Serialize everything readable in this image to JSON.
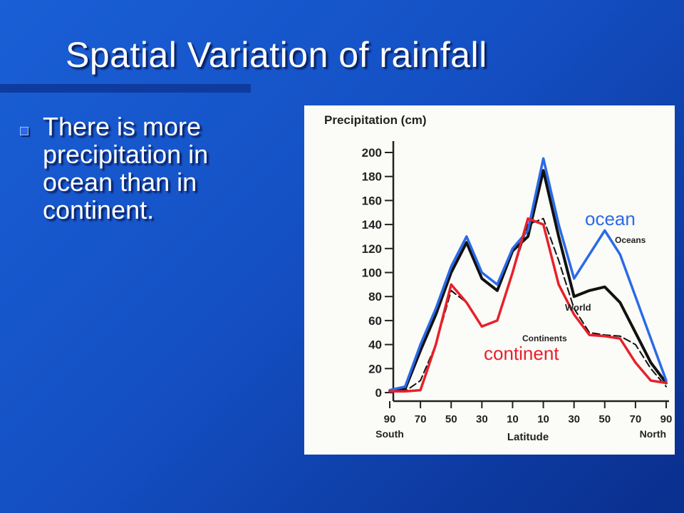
{
  "slide": {
    "title": "Spatial Variation of rainfall",
    "bullets": [
      "There is more precipitation in ocean than in continent."
    ],
    "colors": {
      "background": "#1a5fd6",
      "ocean_annotation": "#2a6ae8",
      "continent_annotation": "#e8202a"
    }
  },
  "chart_data": {
    "type": "line",
    "title": "Precipitation (cm)",
    "xlabel": "Latitude",
    "x_tick_labels": [
      "90",
      "70",
      "50",
      "30",
      "10",
      "10",
      "30",
      "50",
      "70",
      "90"
    ],
    "x_end_labels": {
      "left": "South",
      "right": "North"
    },
    "y_tick_labels": [
      "0",
      "20",
      "40",
      "60",
      "80",
      "100",
      "120",
      "140",
      "160",
      "180",
      "200"
    ],
    "ylim": [
      0,
      200
    ],
    "x": [
      -90,
      -80,
      -70,
      -60,
      -50,
      -40,
      -30,
      -20,
      -10,
      0,
      10,
      20,
      30,
      40,
      50,
      60,
      70,
      80,
      90
    ],
    "series": [
      {
        "name": "Oceans",
        "color": "#2a6ae8",
        "values": [
          2,
          5,
          40,
          70,
          105,
          130,
          100,
          90,
          120,
          135,
          195,
          140,
          95,
          115,
          135,
          115,
          80,
          45,
          10
        ]
      },
      {
        "name": "World",
        "color": "#111111",
        "values": [
          1,
          3,
          35,
          65,
          100,
          125,
          95,
          85,
          118,
          130,
          185,
          130,
          80,
          85,
          88,
          75,
          50,
          25,
          8
        ]
      },
      {
        "name": "Continents",
        "color": "#111111",
        "values": [
          1,
          1,
          10,
          40,
          85,
          75,
          55,
          60,
          100,
          140,
          145,
          110,
          70,
          50,
          48,
          47,
          40,
          20,
          5
        ]
      },
      {
        "name": "continent",
        "color": "#e8202a",
        "values": [
          1,
          1,
          2,
          40,
          90,
          75,
          55,
          60,
          100,
          145,
          140,
          90,
          65,
          48,
          47,
          45,
          25,
          10,
          8
        ]
      }
    ],
    "annotations": [
      {
        "text": "ocean",
        "color": "#2a6ae8"
      },
      {
        "text": "continent",
        "color": "#e8202a"
      }
    ]
  }
}
